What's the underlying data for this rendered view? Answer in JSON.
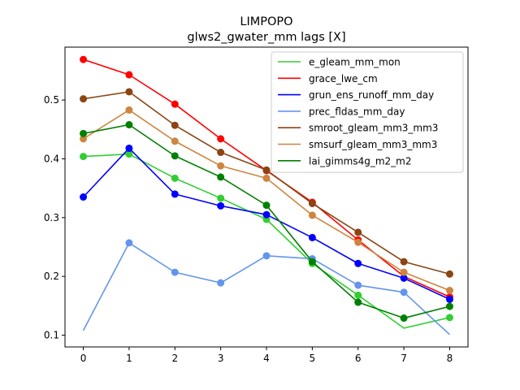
{
  "chart_data": {
    "type": "line",
    "title": "LIMPOPO",
    "subtitle": "glws2_gwater_mm lags [X]",
    "xlabel": "",
    "ylabel": "",
    "x": [
      0,
      1,
      2,
      3,
      4,
      5,
      6,
      7,
      8
    ],
    "xlim": [
      -0.4,
      8.4
    ],
    "ylim": [
      0.08,
      0.59
    ],
    "x_ticks": [
      "0",
      "1",
      "2",
      "3",
      "4",
      "5",
      "6",
      "7",
      "8"
    ],
    "y_ticks": [
      "0.1",
      "0.2",
      "0.3",
      "0.4",
      "0.5"
    ],
    "grid": false,
    "legend_position": "upper right",
    "series": [
      {
        "name": "e_gleam_mm_mon",
        "color": "#32cd32",
        "values": [
          0.404,
          0.408,
          0.367,
          0.333,
          0.297,
          0.222,
          0.168,
          0.112,
          0.13
        ],
        "markers": [
          true,
          true,
          true,
          true,
          true,
          true,
          true,
          false,
          true
        ]
      },
      {
        "name": "grace_lwe_cm",
        "color": "#ff0000",
        "values": [
          0.569,
          0.543,
          0.493,
          0.434,
          0.38,
          0.326,
          0.262,
          0.2,
          0.165
        ],
        "markers": [
          true,
          true,
          true,
          true,
          true,
          true,
          true,
          false,
          true
        ]
      },
      {
        "name": "grun_ens_runoff_mm_day",
        "color": "#0000ff",
        "values": [
          0.335,
          0.418,
          0.34,
          0.32,
          0.305,
          0.266,
          0.222,
          0.197,
          0.161
        ],
        "markers": [
          true,
          true,
          true,
          true,
          true,
          true,
          true,
          true,
          true
        ]
      },
      {
        "name": "prec_fldas_mm_day",
        "color": "#6495ed",
        "values": [
          0.108,
          0.257,
          0.207,
          0.189,
          0.235,
          0.23,
          0.185,
          0.173,
          0.101
        ],
        "markers": [
          false,
          true,
          true,
          true,
          true,
          true,
          true,
          true,
          false
        ]
      },
      {
        "name": "smroot_gleam_mm3_mm3",
        "color": "#8b4513",
        "values": [
          0.502,
          0.514,
          0.457,
          0.411,
          0.381,
          0.324,
          0.275,
          0.225,
          0.204
        ],
        "markers": [
          true,
          true,
          true,
          true,
          true,
          true,
          true,
          true,
          true
        ]
      },
      {
        "name": "smsurf_gleam_mm3_mm3",
        "color": "#cd853f",
        "values": [
          0.434,
          0.483,
          0.43,
          0.388,
          0.367,
          0.304,
          0.258,
          0.207,
          0.176
        ],
        "markers": [
          true,
          true,
          true,
          true,
          true,
          true,
          true,
          true,
          true
        ]
      },
      {
        "name": "lai_gimms4g_m2_m2",
        "color": "#008000",
        "values": [
          0.443,
          0.458,
          0.405,
          0.369,
          0.321,
          0.225,
          0.156,
          0.129,
          0.149
        ],
        "markers": [
          true,
          true,
          true,
          true,
          true,
          true,
          true,
          true,
          true
        ]
      }
    ]
  }
}
